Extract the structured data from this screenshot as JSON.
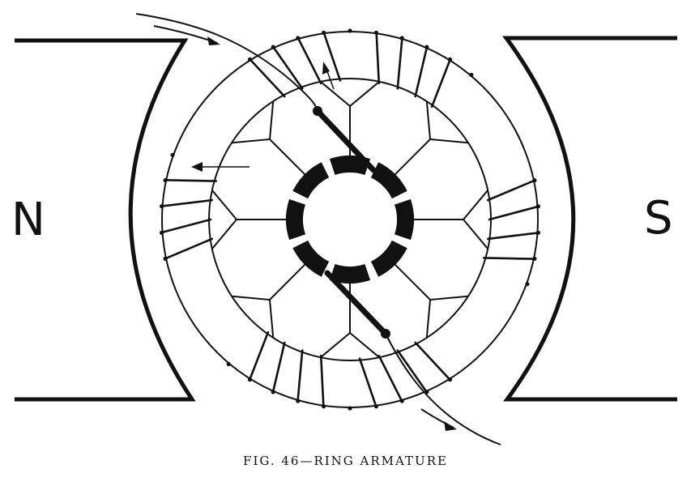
{
  "figure": {
    "caption": "FIG. 46—RING ARMATURE",
    "pole_north_label": "N",
    "pole_south_label": "S"
  },
  "colors": {
    "ink": "#111111",
    "paper": "#ffffff"
  }
}
